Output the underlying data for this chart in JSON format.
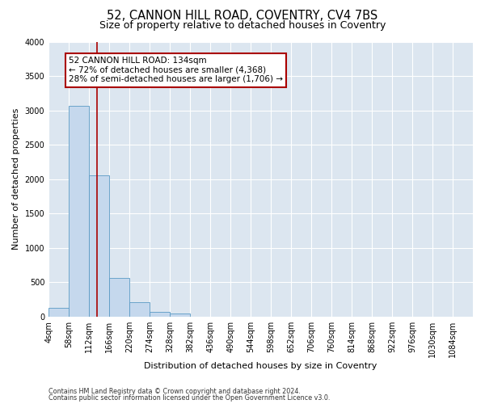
{
  "title1": "52, CANNON HILL ROAD, COVENTRY, CV4 7BS",
  "title2": "Size of property relative to detached houses in Coventry",
  "xlabel": "Distribution of detached houses by size in Coventry",
  "ylabel": "Number of detached properties",
  "footer1": "Contains HM Land Registry data © Crown copyright and database right 2024.",
  "footer2": "Contains public sector information licensed under the Open Government Licence v3.0.",
  "annotation_line1": "52 CANNON HILL ROAD: 134sqm",
  "annotation_line2": "← 72% of detached houses are smaller (4,368)",
  "annotation_line3": "28% of semi-detached houses are larger (1,706) →",
  "property_size": 134,
  "bin_edges": [
    4,
    58,
    112,
    166,
    220,
    274,
    328,
    382,
    436,
    490,
    544,
    598,
    652,
    706,
    760,
    814,
    868,
    922,
    976,
    1030,
    1084
  ],
  "bin_labels": [
    "4sqm",
    "58sqm",
    "112sqm",
    "166sqm",
    "220sqm",
    "274sqm",
    "328sqm",
    "382sqm",
    "436sqm",
    "490sqm",
    "544sqm",
    "598sqm",
    "652sqm",
    "706sqm",
    "760sqm",
    "814sqm",
    "868sqm",
    "922sqm",
    "976sqm",
    "1030sqm",
    "1084sqm"
  ],
  "counts": [
    130,
    3060,
    2060,
    560,
    205,
    70,
    40,
    0,
    0,
    0,
    0,
    0,
    0,
    0,
    0,
    0,
    0,
    0,
    0,
    0
  ],
  "bar_color": "#c5d8ed",
  "bar_edge_color": "#5a9ac5",
  "vline_color": "#aa0000",
  "vline_x": 134,
  "annotation_box_color": "#aa0000",
  "annotation_text_color": "#000000",
  "plot_bg_color": "#dce6f0",
  "fig_bg_color": "#ffffff",
  "ylim": [
    0,
    4000
  ],
  "yticks": [
    0,
    500,
    1000,
    1500,
    2000,
    2500,
    3000,
    3500,
    4000
  ],
  "title1_fontsize": 10.5,
  "title2_fontsize": 9,
  "xlabel_fontsize": 8,
  "ylabel_fontsize": 8,
  "tick_fontsize": 7,
  "footer_fontsize": 5.8
}
